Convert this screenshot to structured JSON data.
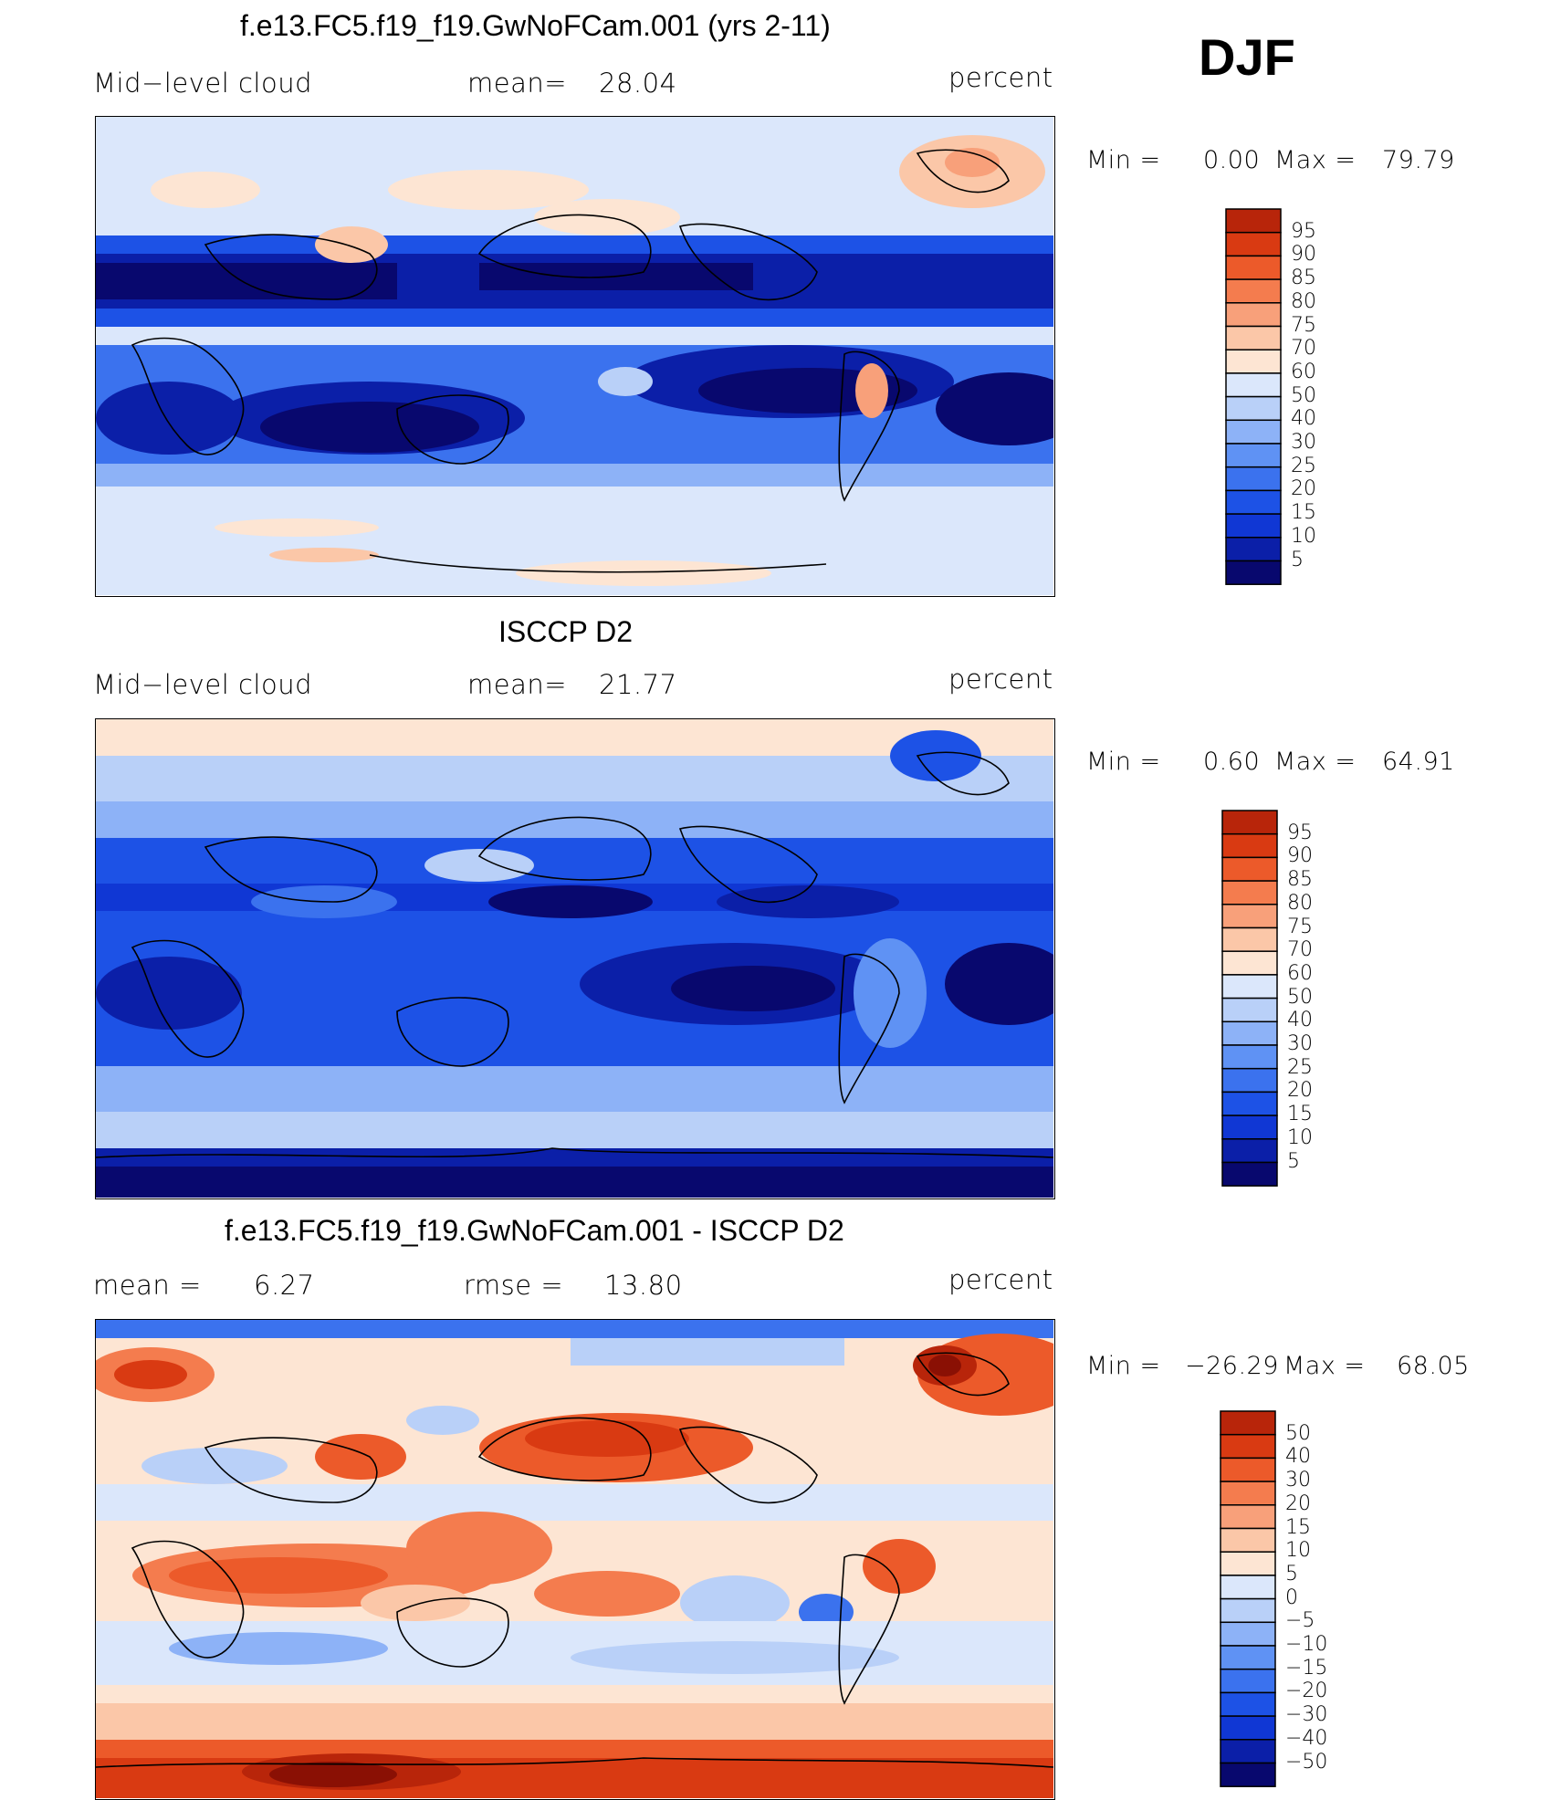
{
  "season": "DJF",
  "panels": [
    {
      "title": "f.e13.FC5.f19_f19.GwNoFCam.001 (yrs 2-11)",
      "left_label": "Mid−level cloud",
      "stat_label": "mean=",
      "stat_value": "28.04",
      "units": "percent",
      "minmax_label": "Min  =",
      "min_value": "0.00",
      "max_label": "Max  =",
      "max_value": "79.79",
      "colorbar_levels": [
        "95",
        "90",
        "85",
        "80",
        "75",
        "70",
        "60",
        "50",
        "40",
        "30",
        "25",
        "20",
        "15",
        "10",
        "5"
      ]
    },
    {
      "title": "ISCCP D2",
      "left_label": "Mid−level cloud",
      "stat_label": "mean=",
      "stat_value": "21.77",
      "units": "percent",
      "minmax_label": "Min  =",
      "min_value": "0.60",
      "max_label": "Max  =",
      "max_value": "64.91",
      "colorbar_levels": [
        "95",
        "90",
        "85",
        "80",
        "75",
        "70",
        "60",
        "50",
        "40",
        "30",
        "25",
        "20",
        "15",
        "10",
        "5"
      ]
    },
    {
      "title": "f.e13.FC5.f19_f19.GwNoFCam.001 - ISCCP D2",
      "left_label": "mean =",
      "left_value": "6.27",
      "stat_label": "rmse =",
      "stat_value": "13.80",
      "units": "percent",
      "minmax_label": "Min  =",
      "min_value": "−26.29",
      "max_label": "Max  =",
      "max_value": "68.05",
      "colorbar_levels": [
        "50",
        "40",
        "30",
        "20",
        "15",
        "10",
        "5",
        "0",
        "−5",
        "−10",
        "−15",
        "−20",
        "−30",
        "−40",
        "−50"
      ]
    }
  ],
  "colors": {
    "abs_palette": [
      "#08086e",
      "#0b1fa8",
      "#1037d4",
      "#1d52e6",
      "#3b72ee",
      "#5f92f4",
      "#8db2f7",
      "#b9d0f8",
      "#dbe7fb",
      "#fde5d3",
      "#fbc7a8",
      "#f8a07a",
      "#f47c4e",
      "#ec5a2a",
      "#d93a12",
      "#b8250a",
      "#8a1004"
    ],
    "diff_palette": [
      "#08086e",
      "#0b1fa8",
      "#1037d4",
      "#1d52e6",
      "#3b72ee",
      "#5f92f4",
      "#8db2f7",
      "#b9d0f8",
      "#dbe7fb",
      "#fde5d3",
      "#fbc7a8",
      "#f8a07a",
      "#f47c4e",
      "#ec5a2a",
      "#d93a12",
      "#b8250a",
      "#8a1004"
    ]
  },
  "chart_data": [
    {
      "type": "heatmap",
      "title": "f.e13.FC5.f19_f19.GwNoFCam.001 (yrs 2-11)",
      "variable": "Mid−level cloud",
      "units": "percent",
      "mean": 28.04,
      "min": 0.0,
      "max": 79.79,
      "levels": [
        5,
        10,
        15,
        20,
        25,
        30,
        40,
        50,
        60,
        70,
        75,
        80,
        85,
        90,
        95
      ]
    },
    {
      "type": "heatmap",
      "title": "ISCCP D2",
      "variable": "Mid−level cloud",
      "units": "percent",
      "mean": 21.77,
      "min": 0.6,
      "max": 64.91,
      "levels": [
        5,
        10,
        15,
        20,
        25,
        30,
        40,
        50,
        60,
        70,
        75,
        80,
        85,
        90,
        95
      ]
    },
    {
      "type": "heatmap",
      "title": "f.e13.FC5.f19_f19.GwNoFCam.001 - ISCCP D2",
      "units": "percent",
      "mean": 6.27,
      "rmse": 13.8,
      "min": -26.29,
      "max": 68.05,
      "levels": [
        -50,
        -40,
        -30,
        -20,
        -15,
        -10,
        -5,
        0,
        5,
        10,
        15,
        20,
        30,
        40,
        50
      ]
    }
  ]
}
